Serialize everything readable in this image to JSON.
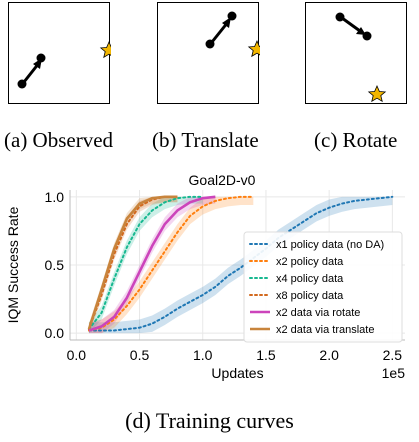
{
  "captions": {
    "a": "(a) Observed",
    "b": "(b) Translate",
    "c": "(c) Rotate",
    "d": "(d) Training curves"
  },
  "icons": {
    "agent": "agent-dot-with-arrow",
    "goal": "goal-star-icon",
    "goal_color": "#f2b600"
  },
  "chart_data": {
    "type": "line",
    "title": "Goal2D-v0",
    "xlabel": "Updates",
    "ylabel": "IQM Success Rate",
    "x_scale_label": "1e5",
    "xlim": [
      -0.05,
      2.6
    ],
    "ylim": [
      -0.05,
      1.05
    ],
    "xticks": [
      0.0,
      0.5,
      1.0,
      1.5,
      2.0,
      2.5
    ],
    "xtick_labels": [
      "0.0",
      "0.5",
      "1.0",
      "1.5",
      "2.0",
      "2.5"
    ],
    "yticks": [
      0.0,
      0.5,
      1.0
    ],
    "ytick_labels": [
      "0.0",
      "0.5",
      "1.0"
    ],
    "grid": true,
    "legend_position": "lower-right",
    "series": [
      {
        "name": "x1 policy data (no DA)",
        "color": "#1f77b4",
        "style": "dotted",
        "x": [
          0.1,
          0.3,
          0.5,
          0.6,
          0.7,
          0.8,
          0.9,
          1.0,
          1.1,
          1.2,
          1.3,
          1.4,
          1.5,
          1.6,
          1.7,
          1.8,
          1.9,
          2.0,
          2.1,
          2.2,
          2.3,
          2.4,
          2.5
        ],
        "y": [
          0.02,
          0.02,
          0.04,
          0.07,
          0.12,
          0.18,
          0.23,
          0.28,
          0.34,
          0.42,
          0.48,
          0.55,
          0.62,
          0.7,
          0.76,
          0.82,
          0.88,
          0.92,
          0.95,
          0.97,
          0.98,
          0.99,
          1.0
        ],
        "band": 0.06
      },
      {
        "name": "x2 policy data",
        "color": "#ff7f0e",
        "style": "dotted",
        "x": [
          0.1,
          0.2,
          0.3,
          0.4,
          0.5,
          0.6,
          0.7,
          0.8,
          0.9,
          1.0,
          1.1,
          1.2,
          1.3,
          1.4
        ],
        "y": [
          0.02,
          0.04,
          0.1,
          0.2,
          0.32,
          0.46,
          0.6,
          0.74,
          0.86,
          0.93,
          0.97,
          0.99,
          1.0,
          1.0
        ],
        "band": 0.06
      },
      {
        "name": "x4 policy data",
        "color": "#17b890",
        "style": "dotted",
        "x": [
          0.1,
          0.2,
          0.3,
          0.4,
          0.5,
          0.6,
          0.7,
          0.8,
          0.9,
          1.0
        ],
        "y": [
          0.03,
          0.15,
          0.4,
          0.63,
          0.8,
          0.9,
          0.96,
          0.99,
          1.0,
          1.0
        ],
        "band": 0.05
      },
      {
        "name": "x8 policy data",
        "color": "#d2691e",
        "style": "dotted",
        "x": [
          0.1,
          0.2,
          0.3,
          0.4,
          0.5,
          0.6,
          0.7,
          0.8
        ],
        "y": [
          0.03,
          0.28,
          0.58,
          0.8,
          0.93,
          0.98,
          1.0,
          1.0
        ],
        "band": 0.04
      },
      {
        "name": "x2 data via rotate",
        "color": "#cc44bb",
        "style": "solid",
        "x": [
          0.1,
          0.2,
          0.3,
          0.4,
          0.5,
          0.6,
          0.7,
          0.8,
          0.9,
          1.0,
          1.1
        ],
        "y": [
          0.02,
          0.05,
          0.12,
          0.26,
          0.45,
          0.64,
          0.8,
          0.9,
          0.96,
          0.99,
          1.0
        ],
        "band": 0.05
      },
      {
        "name": "x2 data via translate",
        "color": "#c8843c",
        "style": "solid",
        "x": [
          0.1,
          0.2,
          0.3,
          0.4,
          0.5,
          0.6,
          0.7,
          0.8
        ],
        "y": [
          0.03,
          0.32,
          0.62,
          0.84,
          0.95,
          0.99,
          1.0,
          1.0
        ],
        "band": 0.04
      }
    ]
  }
}
